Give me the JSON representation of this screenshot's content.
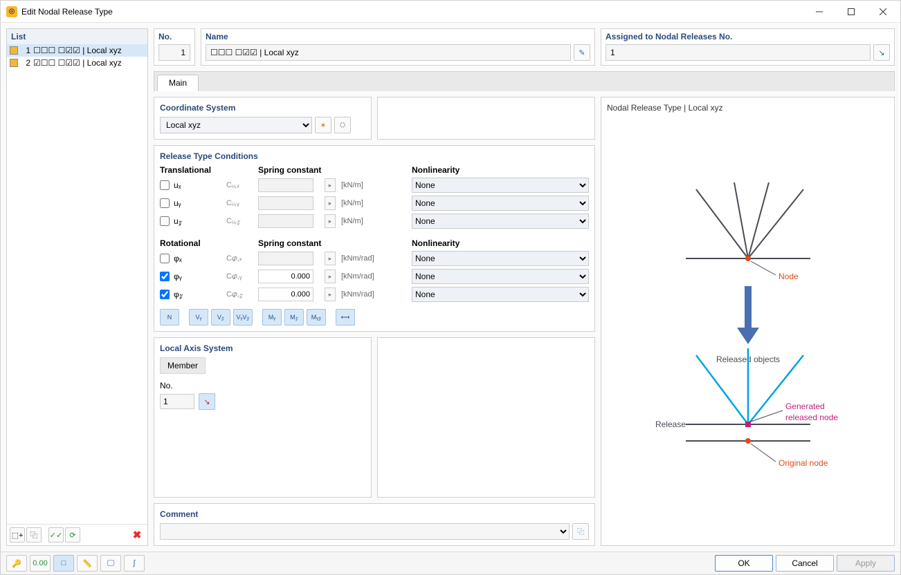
{
  "window": {
    "title": "Edit Nodal Release Type"
  },
  "list": {
    "header": "List",
    "items": [
      {
        "num": "1",
        "label": "☐☐☐ ☐☑☑ | Local xyz",
        "swatch": "#f7b731",
        "selected": true
      },
      {
        "num": "2",
        "label": "☑☐☐ ☐☑☑ | Local xyz",
        "swatch": "#f7b731",
        "selected": false
      }
    ]
  },
  "list_toolbar": {
    "new_icon": "⬚+",
    "dup_icon": "⿻",
    "chk_icon": "✓✓",
    "filt_icon": "⟳",
    "del_icon": "✖",
    "del_color": "#e03030"
  },
  "header": {
    "no_label": "No.",
    "no_value": "1",
    "name_label": "Name",
    "name_value": "☐☐☐ ☐☑☑ | Local xyz",
    "name_edit_icon": "✎",
    "assigned_label": "Assigned to Nodal Releases No.",
    "assigned_value": "1",
    "assigned_pick_icon": "↘"
  },
  "tabs": {
    "main": "Main"
  },
  "coord": {
    "title": "Coordinate System",
    "value": "Local xyz",
    "new_icon": "✶",
    "edit_icon": "⛭"
  },
  "release": {
    "title": "Release Type Conditions",
    "trans_label": "Translational",
    "spring_label": "Spring constant",
    "nonlin_label": "Nonlinearity",
    "rot_label": "Rotational",
    "rows_t": [
      {
        "sym": "uₓ",
        "sc": "Cᵤ,ₓ",
        "val": "",
        "enabled": false,
        "unit": "[kN/m]",
        "non": "None",
        "checked": false
      },
      {
        "sym": "uᵧ",
        "sc": "Cᵤ,ᵧ",
        "val": "",
        "enabled": false,
        "unit": "[kN/m]",
        "non": "None",
        "checked": false
      },
      {
        "sym": "u𝓏",
        "sc": "Cᵤ,𝓏",
        "val": "",
        "enabled": false,
        "unit": "[kN/m]",
        "non": "None",
        "checked": false
      }
    ],
    "rows_r": [
      {
        "sym": "φₓ",
        "sc": "C𝜑,ₓ",
        "val": "",
        "enabled": false,
        "unit": "[kNm/rad]",
        "non": "None",
        "checked": false
      },
      {
        "sym": "φᵧ",
        "sc": "C𝜑,ᵧ",
        "val": "0.000",
        "enabled": true,
        "unit": "[kNm/rad]",
        "non": "None",
        "checked": true
      },
      {
        "sym": "φ𝓏",
        "sc": "C𝜑,𝓏",
        "val": "0.000",
        "enabled": true,
        "unit": "[kNm/rad]",
        "non": "None",
        "checked": true
      }
    ],
    "btns": [
      "N",
      "Vᵧ",
      "V𝓏",
      "VᵧV𝓏",
      "Mᵧ",
      "M𝓏",
      "Mᵧ𝓏",
      "⟷"
    ]
  },
  "local_axis": {
    "title": "Local Axis System",
    "member": "Member",
    "no_label": "No.",
    "no_value": "1",
    "pick_icon": "↘"
  },
  "comment": {
    "title": "Comment",
    "copy_icon": "⿻"
  },
  "preview": {
    "title": "Nodal Release Type | Local xyz",
    "labels": {
      "node": "Node",
      "released_objects": "Released objects",
      "release": "Release",
      "generated": "Generated released node",
      "original": "Original node"
    },
    "colors": {
      "dark": "#4a4a55",
      "node": "#e04a1a",
      "arrow": "#4a6fb0",
      "released": "#00a2e0",
      "gen_node": "#c21f79",
      "text": "#4a4a55"
    }
  },
  "footer": {
    "icons": [
      "🔑",
      "0.00",
      "□",
      "📏",
      "🖵",
      "∫"
    ],
    "icon_colors": [
      "#888",
      "#2a8a3a",
      "#2a6aa8",
      "#2a6aa8",
      "#2a6aa8",
      "#2a6aa8"
    ],
    "ok": "OK",
    "cancel": "Cancel",
    "apply": "Apply"
  }
}
